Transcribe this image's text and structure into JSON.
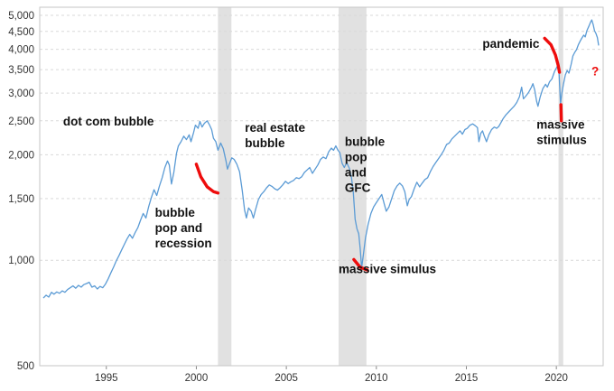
{
  "figure": {
    "background": "#ffffff",
    "border_color": "#c6c6c6",
    "grid_color": "#d9d9d9",
    "tick_color": "#888888"
  },
  "chart_data": {
    "type": "line",
    "title": "",
    "xlabel": "",
    "ylabel": "",
    "y_scale": "log",
    "grid": "horizontal-dashed",
    "legend": "none",
    "xlim": [
      1991.3,
      2022.6
    ],
    "ylim": [
      500,
      5000
    ],
    "line_color": "#5b9bd5",
    "red_color": "#ee0c0c",
    "x_ticks": [
      {
        "v": 1995,
        "label": "1995"
      },
      {
        "v": 2000,
        "label": "2000"
      },
      {
        "v": 2005,
        "label": "2005"
      },
      {
        "v": 2010,
        "label": "2010"
      },
      {
        "v": 2015,
        "label": "2015"
      },
      {
        "v": 2020,
        "label": "2020"
      }
    ],
    "y_ticks": [
      {
        "v": 5000,
        "label": "5,000"
      },
      {
        "v": 4500,
        "label": "4,500"
      },
      {
        "v": 4000,
        "label": "4,000"
      },
      {
        "v": 3500,
        "label": "3,500"
      },
      {
        "v": 3000,
        "label": "3,000"
      },
      {
        "v": 2500,
        "label": "2,500"
      },
      {
        "v": 2000,
        "label": "2,000"
      },
      {
        "v": 1500,
        "label": "1,500"
      },
      {
        "v": 1000,
        "label": "1,000"
      },
      {
        "v": 500,
        "label": "500"
      }
    ],
    "recession_bands": {
      "color": "#e1e1e1",
      "ranges": [
        [
          2001.2,
          2001.95
        ],
        [
          2007.9,
          2009.45
        ],
        [
          2020.12,
          2020.38
        ]
      ]
    },
    "series": [
      {
        "name": "price",
        "points": [
          [
            1991.5,
            780
          ],
          [
            1991.65,
            795
          ],
          [
            1991.8,
            785
          ],
          [
            1991.95,
            810
          ],
          [
            1992.1,
            800
          ],
          [
            1992.25,
            812
          ],
          [
            1992.4,
            805
          ],
          [
            1992.55,
            818
          ],
          [
            1992.7,
            810
          ],
          [
            1992.85,
            825
          ],
          [
            1993.0,
            835
          ],
          [
            1993.15,
            845
          ],
          [
            1993.3,
            832
          ],
          [
            1993.45,
            848
          ],
          [
            1993.6,
            838
          ],
          [
            1993.75,
            852
          ],
          [
            1993.9,
            858
          ],
          [
            1994.05,
            865
          ],
          [
            1994.2,
            838
          ],
          [
            1994.35,
            845
          ],
          [
            1994.5,
            828
          ],
          [
            1994.65,
            842
          ],
          [
            1994.8,
            835
          ],
          [
            1994.95,
            855
          ],
          [
            1995.1,
            885
          ],
          [
            1995.25,
            920
          ],
          [
            1995.4,
            955
          ],
          [
            1995.55,
            995
          ],
          [
            1995.7,
            1030
          ],
          [
            1995.85,
            1070
          ],
          [
            1996.0,
            1110
          ],
          [
            1996.15,
            1150
          ],
          [
            1996.3,
            1185
          ],
          [
            1996.45,
            1155
          ],
          [
            1996.6,
            1200
          ],
          [
            1996.75,
            1240
          ],
          [
            1996.9,
            1300
          ],
          [
            1997.05,
            1360
          ],
          [
            1997.2,
            1320
          ],
          [
            1997.35,
            1420
          ],
          [
            1997.5,
            1510
          ],
          [
            1997.65,
            1590
          ],
          [
            1997.8,
            1530
          ],
          [
            1997.95,
            1630
          ],
          [
            1998.1,
            1720
          ],
          [
            1998.25,
            1840
          ],
          [
            1998.4,
            1920
          ],
          [
            1998.5,
            1870
          ],
          [
            1998.62,
            1650
          ],
          [
            1998.75,
            1780
          ],
          [
            1998.9,
            2020
          ],
          [
            1999.0,
            2120
          ],
          [
            1999.15,
            2180
          ],
          [
            1999.3,
            2260
          ],
          [
            1999.45,
            2210
          ],
          [
            1999.6,
            2280
          ],
          [
            1999.7,
            2180
          ],
          [
            1999.85,
            2320
          ],
          [
            1999.95,
            2430
          ],
          [
            2000.1,
            2380
          ],
          [
            2000.2,
            2490
          ],
          [
            2000.32,
            2400
          ],
          [
            2000.45,
            2460
          ],
          [
            2000.6,
            2500
          ],
          [
            2000.72,
            2440
          ],
          [
            2000.85,
            2360
          ],
          [
            2000.95,
            2230
          ],
          [
            2001.08,
            2180
          ],
          [
            2001.2,
            2060
          ],
          [
            2001.35,
            2160
          ],
          [
            2001.5,
            2080
          ],
          [
            2001.65,
            1920
          ],
          [
            2001.73,
            1820
          ],
          [
            2001.85,
            1890
          ],
          [
            2001.97,
            1960
          ],
          [
            2002.1,
            1940
          ],
          [
            2002.25,
            1880
          ],
          [
            2002.4,
            1790
          ],
          [
            2002.55,
            1580
          ],
          [
            2002.68,
            1390
          ],
          [
            2002.78,
            1320
          ],
          [
            2002.9,
            1410
          ],
          [
            2003.05,
            1380
          ],
          [
            2003.17,
            1320
          ],
          [
            2003.3,
            1400
          ],
          [
            2003.45,
            1490
          ],
          [
            2003.6,
            1540
          ],
          [
            2003.75,
            1570
          ],
          [
            2003.9,
            1610
          ],
          [
            2004.05,
            1640
          ],
          [
            2004.2,
            1625
          ],
          [
            2004.35,
            1600
          ],
          [
            2004.5,
            1585
          ],
          [
            2004.65,
            1610
          ],
          [
            2004.8,
            1640
          ],
          [
            2004.95,
            1680
          ],
          [
            2005.1,
            1655
          ],
          [
            2005.25,
            1675
          ],
          [
            2005.4,
            1690
          ],
          [
            2005.55,
            1720
          ],
          [
            2005.7,
            1710
          ],
          [
            2005.85,
            1730
          ],
          [
            2006.0,
            1780
          ],
          [
            2006.15,
            1810
          ],
          [
            2006.3,
            1840
          ],
          [
            2006.45,
            1770
          ],
          [
            2006.6,
            1820
          ],
          [
            2006.75,
            1870
          ],
          [
            2006.9,
            1940
          ],
          [
            2007.05,
            1970
          ],
          [
            2007.2,
            1950
          ],
          [
            2007.35,
            2040
          ],
          [
            2007.5,
            2090
          ],
          [
            2007.62,
            2060
          ],
          [
            2007.75,
            2120
          ],
          [
            2007.87,
            2060
          ],
          [
            2007.97,
            2030
          ],
          [
            2008.1,
            1890
          ],
          [
            2008.22,
            1840
          ],
          [
            2008.35,
            1900
          ],
          [
            2008.5,
            1830
          ],
          [
            2008.62,
            1720
          ],
          [
            2008.72,
            1560
          ],
          [
            2008.82,
            1310
          ],
          [
            2008.92,
            1230
          ],
          [
            2009.02,
            1190
          ],
          [
            2009.1,
            1080
          ],
          [
            2009.18,
            950
          ],
          [
            2009.28,
            1040
          ],
          [
            2009.4,
            1160
          ],
          [
            2009.55,
            1270
          ],
          [
            2009.7,
            1360
          ],
          [
            2009.85,
            1420
          ],
          [
            2010.0,
            1460
          ],
          [
            2010.15,
            1500
          ],
          [
            2010.3,
            1540
          ],
          [
            2010.45,
            1440
          ],
          [
            2010.55,
            1380
          ],
          [
            2010.7,
            1420
          ],
          [
            2010.85,
            1500
          ],
          [
            2011.0,
            1580
          ],
          [
            2011.15,
            1630
          ],
          [
            2011.3,
            1660
          ],
          [
            2011.45,
            1630
          ],
          [
            2011.58,
            1570
          ],
          [
            2011.72,
            1430
          ],
          [
            2011.82,
            1490
          ],
          [
            2011.95,
            1520
          ],
          [
            2012.1,
            1600
          ],
          [
            2012.25,
            1670
          ],
          [
            2012.4,
            1620
          ],
          [
            2012.55,
            1660
          ],
          [
            2012.7,
            1700
          ],
          [
            2012.85,
            1720
          ],
          [
            2013.0,
            1790
          ],
          [
            2013.15,
            1850
          ],
          [
            2013.3,
            1900
          ],
          [
            2013.45,
            1950
          ],
          [
            2013.6,
            2000
          ],
          [
            2013.75,
            2060
          ],
          [
            2013.9,
            2140
          ],
          [
            2014.05,
            2160
          ],
          [
            2014.2,
            2220
          ],
          [
            2014.35,
            2260
          ],
          [
            2014.5,
            2300
          ],
          [
            2014.65,
            2340
          ],
          [
            2014.78,
            2290
          ],
          [
            2014.92,
            2360
          ],
          [
            2015.05,
            2380
          ],
          [
            2015.2,
            2430
          ],
          [
            2015.35,
            2450
          ],
          [
            2015.5,
            2420
          ],
          [
            2015.62,
            2390
          ],
          [
            2015.7,
            2180
          ],
          [
            2015.8,
            2300
          ],
          [
            2015.9,
            2340
          ],
          [
            2016.0,
            2260
          ],
          [
            2016.12,
            2180
          ],
          [
            2016.25,
            2280
          ],
          [
            2016.4,
            2360
          ],
          [
            2016.55,
            2400
          ],
          [
            2016.68,
            2380
          ],
          [
            2016.8,
            2410
          ],
          [
            2016.92,
            2470
          ],
          [
            2017.05,
            2540
          ],
          [
            2017.2,
            2600
          ],
          [
            2017.35,
            2650
          ],
          [
            2017.5,
            2700
          ],
          [
            2017.65,
            2750
          ],
          [
            2017.8,
            2820
          ],
          [
            2017.95,
            2930
          ],
          [
            2018.07,
            3120
          ],
          [
            2018.17,
            2890
          ],
          [
            2018.3,
            2940
          ],
          [
            2018.45,
            3010
          ],
          [
            2018.6,
            3110
          ],
          [
            2018.7,
            3190
          ],
          [
            2018.8,
            3060
          ],
          [
            2018.9,
            2850
          ],
          [
            2018.98,
            2750
          ],
          [
            2019.1,
            2920
          ],
          [
            2019.25,
            3090
          ],
          [
            2019.4,
            3180
          ],
          [
            2019.5,
            3120
          ],
          [
            2019.62,
            3230
          ],
          [
            2019.75,
            3290
          ],
          [
            2019.9,
            3460
          ],
          [
            2020.03,
            3560
          ],
          [
            2020.12,
            3650
          ],
          [
            2020.18,
            3150
          ],
          [
            2020.23,
            2800
          ],
          [
            2020.3,
            2980
          ],
          [
            2020.4,
            3190
          ],
          [
            2020.5,
            3380
          ],
          [
            2020.6,
            3480
          ],
          [
            2020.7,
            3420
          ],
          [
            2020.82,
            3620
          ],
          [
            2020.92,
            3830
          ],
          [
            2021.02,
            3920
          ],
          [
            2021.12,
            3990
          ],
          [
            2021.22,
            4120
          ],
          [
            2021.32,
            4220
          ],
          [
            2021.42,
            4310
          ],
          [
            2021.52,
            4390
          ],
          [
            2021.6,
            4340
          ],
          [
            2021.7,
            4530
          ],
          [
            2021.8,
            4650
          ],
          [
            2021.9,
            4780
          ],
          [
            2021.97,
            4850
          ],
          [
            2022.05,
            4700
          ],
          [
            2022.12,
            4520
          ],
          [
            2022.2,
            4440
          ],
          [
            2022.28,
            4320
          ],
          [
            2022.35,
            4100
          ]
        ]
      }
    ],
    "annotations": [
      {
        "name": "dot-com-bubble-label",
        "lines": [
          "dot com bubble"
        ],
        "x": 1992.6,
        "y": 2600,
        "color": "#111111",
        "size": 13.5
      },
      {
        "name": "bubble-pop-recession-label",
        "lines": [
          "bubble",
          "pop and",
          "recession"
        ],
        "x": 1997.7,
        "y": 1430,
        "color": "#111111",
        "size": 13.5
      },
      {
        "name": "real-estate-bubble-label",
        "lines": [
          "real estate",
          "bubble"
        ],
        "x": 2002.7,
        "y": 2500,
        "color": "#111111",
        "size": 13.5
      },
      {
        "name": "bubble-pop-gfc-label",
        "lines": [
          "bubble",
          "pop",
          "and",
          "GFC"
        ],
        "x": 2008.25,
        "y": 2280,
        "color": "#111111",
        "size": 13.5
      },
      {
        "name": "massive-simulus-label",
        "lines": [
          "massive simulus"
        ],
        "x": 2007.9,
        "y": 985,
        "color": "#111111",
        "size": 13.5
      },
      {
        "name": "pandemic-label",
        "lines": [
          "pandemic"
        ],
        "x": 2015.9,
        "y": 4330,
        "color": "#111111",
        "size": 13.5
      },
      {
        "name": "massive-stimulus-label",
        "lines": [
          "massive",
          "stimulus"
        ],
        "x": 2018.9,
        "y": 2550,
        "color": "#111111",
        "size": 13.5
      },
      {
        "name": "question-mark-label",
        "lines": [
          "?"
        ],
        "x": 2021.95,
        "y": 3700,
        "color": "#ee0c0c",
        "size": 21
      }
    ],
    "red_marks": [
      {
        "name": "dotcom-pop-mark",
        "points": [
          [
            2000.0,
            1880
          ],
          [
            2000.25,
            1730
          ],
          [
            2000.6,
            1620
          ],
          [
            2000.95,
            1570
          ],
          [
            2001.2,
            1555
          ]
        ]
      },
      {
        "name": "gfc-bottom-mark",
        "points": [
          [
            2008.75,
            1005
          ],
          [
            2009.1,
            955
          ],
          [
            2009.5,
            938
          ]
        ]
      },
      {
        "name": "pandemic-crash-mark",
        "points": [
          [
            2019.35,
            4300
          ],
          [
            2019.7,
            4120
          ],
          [
            2019.95,
            3850
          ],
          [
            2020.1,
            3600
          ],
          [
            2020.17,
            3440
          ]
        ]
      },
      {
        "name": "stimulus-pointer-mark",
        "points": [
          [
            2020.25,
            2780
          ],
          [
            2020.28,
            2500
          ]
        ]
      }
    ]
  }
}
